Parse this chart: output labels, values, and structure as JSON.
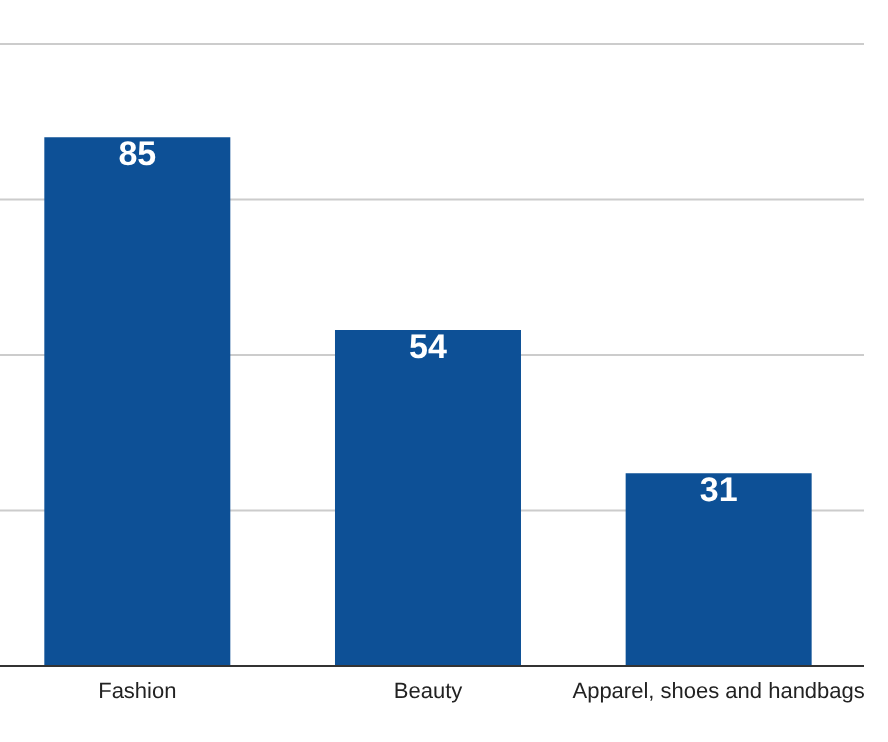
{
  "chart_data": {
    "type": "bar",
    "categories": [
      "Fashion",
      "Beauty",
      "Apparel, shoes and handbags"
    ],
    "values": [
      85,
      54,
      31
    ],
    "color": "#0d5096",
    "ylim": [
      0,
      100
    ],
    "yticks": [
      {
        "value": 0,
        "label": null
      },
      {
        "value": 25,
        "label": null
      },
      {
        "value": 50,
        "label": null
      },
      {
        "value": 75,
        "label": null
      },
      {
        "value": 100,
        "label": null
      }
    ],
    "tick_labels": "x",
    "grid": "y",
    "data_labels": true
  }
}
